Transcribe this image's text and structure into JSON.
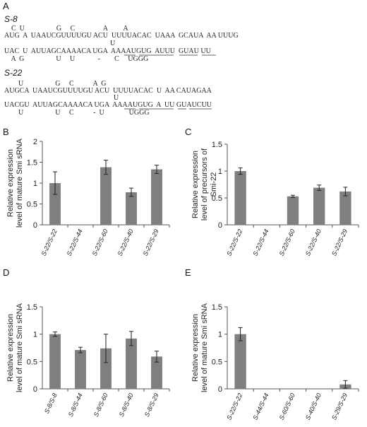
{
  "panel_labels": {
    "A": "A",
    "B": "B",
    "C": "C",
    "D": "D",
    "E": "E"
  },
  "structures": [
    {
      "name": "S-8",
      "rows": [
        "    C  U                  G     C                A         A           ",
        "AUG  A  UAAUCGUUUUGU ACU  UUUUACAC  UAAA  GCAUA  AA UUUG",
        "                                                            U",
        "UAC  U  AUUAGCAAAACA UGA  AAAAUGUG  AUUU  GUAU UU",
        "    A  G                  U     U             -        C     UGGG"
      ]
    },
    {
      "name": "S-22",
      "rows": [
        "        U                  G     C           A  G",
        "AUGCA  UAAUCGUUUUGU ACU  UUUUACAC  U  AA CAUAGAA",
        "                                                              U",
        "UACGU  AUUAGCAAAACA UGA  AAAAUGUG  A  UU GUAUCUU",
        "        U                  U     C           -  U              UGGG"
      ]
    }
  ],
  "chart_data": [
    {
      "panel": "B",
      "type": "bar",
      "ylabel": "Relative expression level of mature Smi sRNA",
      "ylim": [
        0,
        2
      ],
      "yticks": [
        "0",
        "0.5",
        "1",
        "1.5",
        "2"
      ],
      "categories": [
        "S-22/S-22",
        "S-22/S-44",
        "S-22/S-60",
        "S-22/S-40",
        "S-22/S-29"
      ],
      "values": [
        1.0,
        0,
        1.38,
        0.78,
        1.33
      ],
      "errors": [
        0.27,
        0,
        0.17,
        0.1,
        0.1
      ]
    },
    {
      "panel": "C",
      "type": "bar",
      "ylabel": "Relative expression level of precursors of Smi-22",
      "ylim": [
        0,
        1.5
      ],
      "yticks": [
        "0",
        "0.5",
        "1",
        "1.5"
      ],
      "categories": [
        "S-22/S-22",
        "S-22/S-44",
        "S-22/S-60",
        "S-22/S-40",
        "S-22/S-29"
      ],
      "values": [
        1.0,
        0,
        0.53,
        0.69,
        0.62
      ],
      "errors": [
        0.06,
        0,
        0.02,
        0.05,
        0.08
      ]
    },
    {
      "panel": "D",
      "type": "bar",
      "ylabel": "Relative expression level of mature Smi sRNA",
      "ylim": [
        0,
        1.5
      ],
      "yticks": [
        "0",
        "0.5",
        "1",
        "1.5"
      ],
      "categories": [
        "S-8/S-8",
        "S-8/S-44",
        "S-8/S-60",
        "S-8/S-40",
        "S-8/S-29"
      ],
      "values": [
        1.0,
        0.71,
        0.74,
        0.92,
        0.59
      ],
      "errors": [
        0.04,
        0.05,
        0.26,
        0.13,
        0.1
      ]
    },
    {
      "panel": "E",
      "type": "bar",
      "ylabel": "Relative expression level of mature Smi sRNA",
      "ylim": [
        0,
        1.5
      ],
      "yticks": [
        "0",
        "0.5",
        "1",
        "1.5"
      ],
      "categories": [
        "S-22/S-22",
        "S-44/S-44",
        "S-60/S-60",
        "S-40/S-40",
        "S-29/S-29"
      ],
      "values": [
        1.0,
        0,
        0,
        0,
        0.08
      ],
      "errors": [
        0.12,
        0,
        0,
        0,
        0.07
      ]
    }
  ]
}
